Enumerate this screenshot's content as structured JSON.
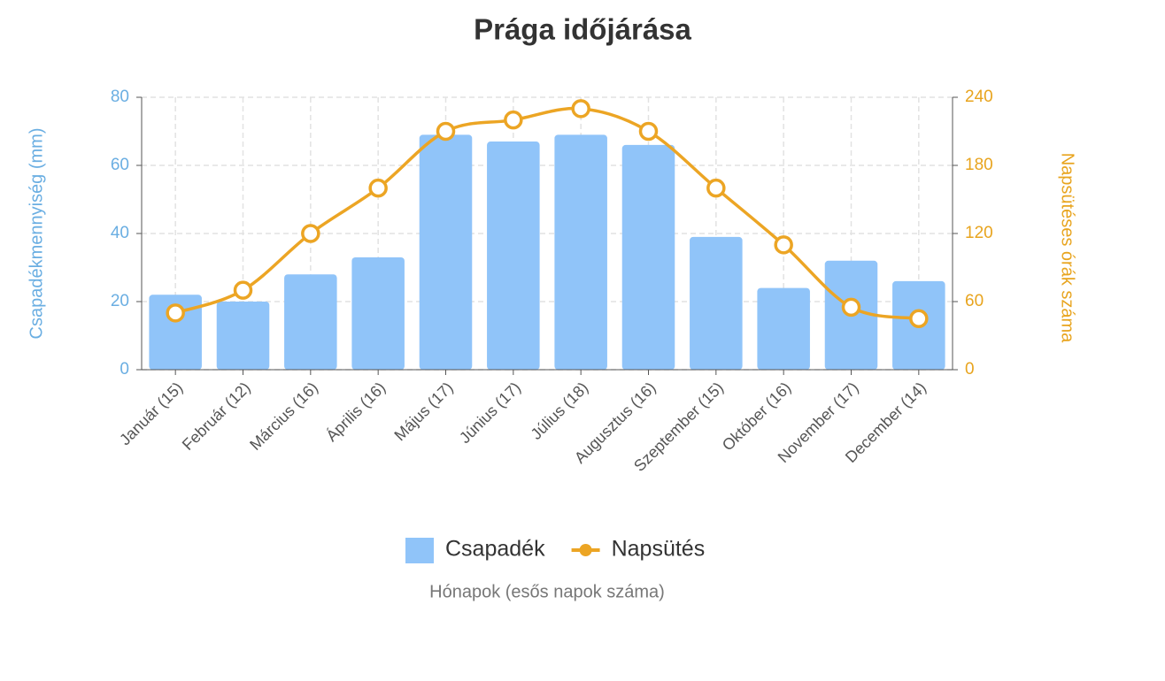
{
  "chart_data": {
    "type": "combo",
    "title": "Prága időjárása",
    "x_label": "Hónapok (esős napok száma)",
    "y_label": "Csapadékmennyiség (mm)",
    "y2_label": "Napsütéses órák száma",
    "categories": [
      "Január (15)",
      "Február (12)",
      "Március (16)",
      "Április (16)",
      "Május (17)",
      "Június (17)",
      "Július (18)",
      "Augusztus (16)",
      "Szeptember (15)",
      "Október (16)",
      "November (17)",
      "December (14)"
    ],
    "series": [
      {
        "name": "Csapadék",
        "type": "bar",
        "color": "#90c4f9",
        "values": [
          22,
          20,
          28,
          33,
          69,
          67,
          69,
          66,
          39,
          24,
          32,
          26
        ]
      },
      {
        "name": "Napsütés",
        "type": "line",
        "axis": "y2",
        "color": "#eca524",
        "values": [
          50,
          70,
          120,
          160,
          210,
          220,
          230,
          210,
          160,
          110,
          55,
          45
        ]
      }
    ],
    "ylim": [
      0,
      80
    ],
    "yticks": [
      0,
      20,
      40,
      60,
      80
    ],
    "y2lim": [
      0,
      240
    ],
    "y2ticks": [
      0,
      60,
      120,
      180,
      240
    ],
    "y_color": "#6aaee2",
    "y2_color": "#e8a41e",
    "grid": true,
    "legend": "bottom"
  }
}
